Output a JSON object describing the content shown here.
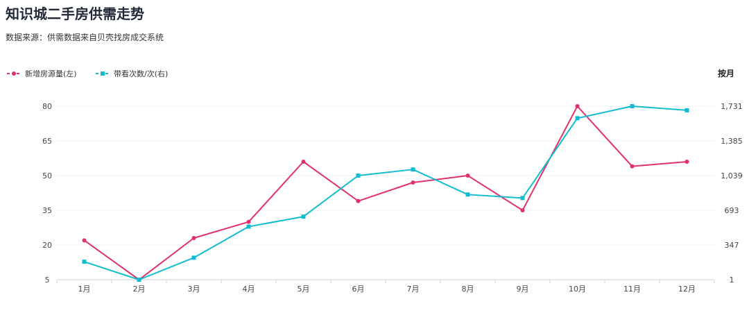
{
  "title": "知识城二手房供需走势",
  "subtitle": "数据来源：供需数据来自贝壳找房成交系统",
  "chart_data": {
    "type": "line",
    "categories": [
      "1月",
      "2月",
      "3月",
      "4月",
      "5月",
      "6月",
      "7月",
      "8月",
      "9月",
      "10月",
      "11月",
      "12月"
    ],
    "series": [
      {
        "name": "新增房源量(左)",
        "axis": "left",
        "color": "#e0306e",
        "values": [
          22,
          5,
          23,
          30,
          56,
          39,
          47,
          50,
          35,
          80,
          54,
          56
        ]
      },
      {
        "name": "带看次数/次(右)",
        "axis": "right",
        "color": "#12bcd0",
        "values": [
          180,
          1,
          220,
          530,
          630,
          1039,
          1100,
          850,
          815,
          1611,
          1731,
          1690
        ]
      }
    ],
    "y_left": {
      "ticks": [
        "5",
        "20",
        "35",
        "50",
        "65",
        "80"
      ],
      "range": [
        5,
        80
      ]
    },
    "y_right": {
      "ticks": [
        "1",
        "347",
        "693",
        "1,039",
        "1,385",
        "1,731"
      ],
      "range": [
        1,
        1731
      ]
    },
    "right_axis_title": "按月",
    "legend_position": "top-left",
    "grid": true
  }
}
